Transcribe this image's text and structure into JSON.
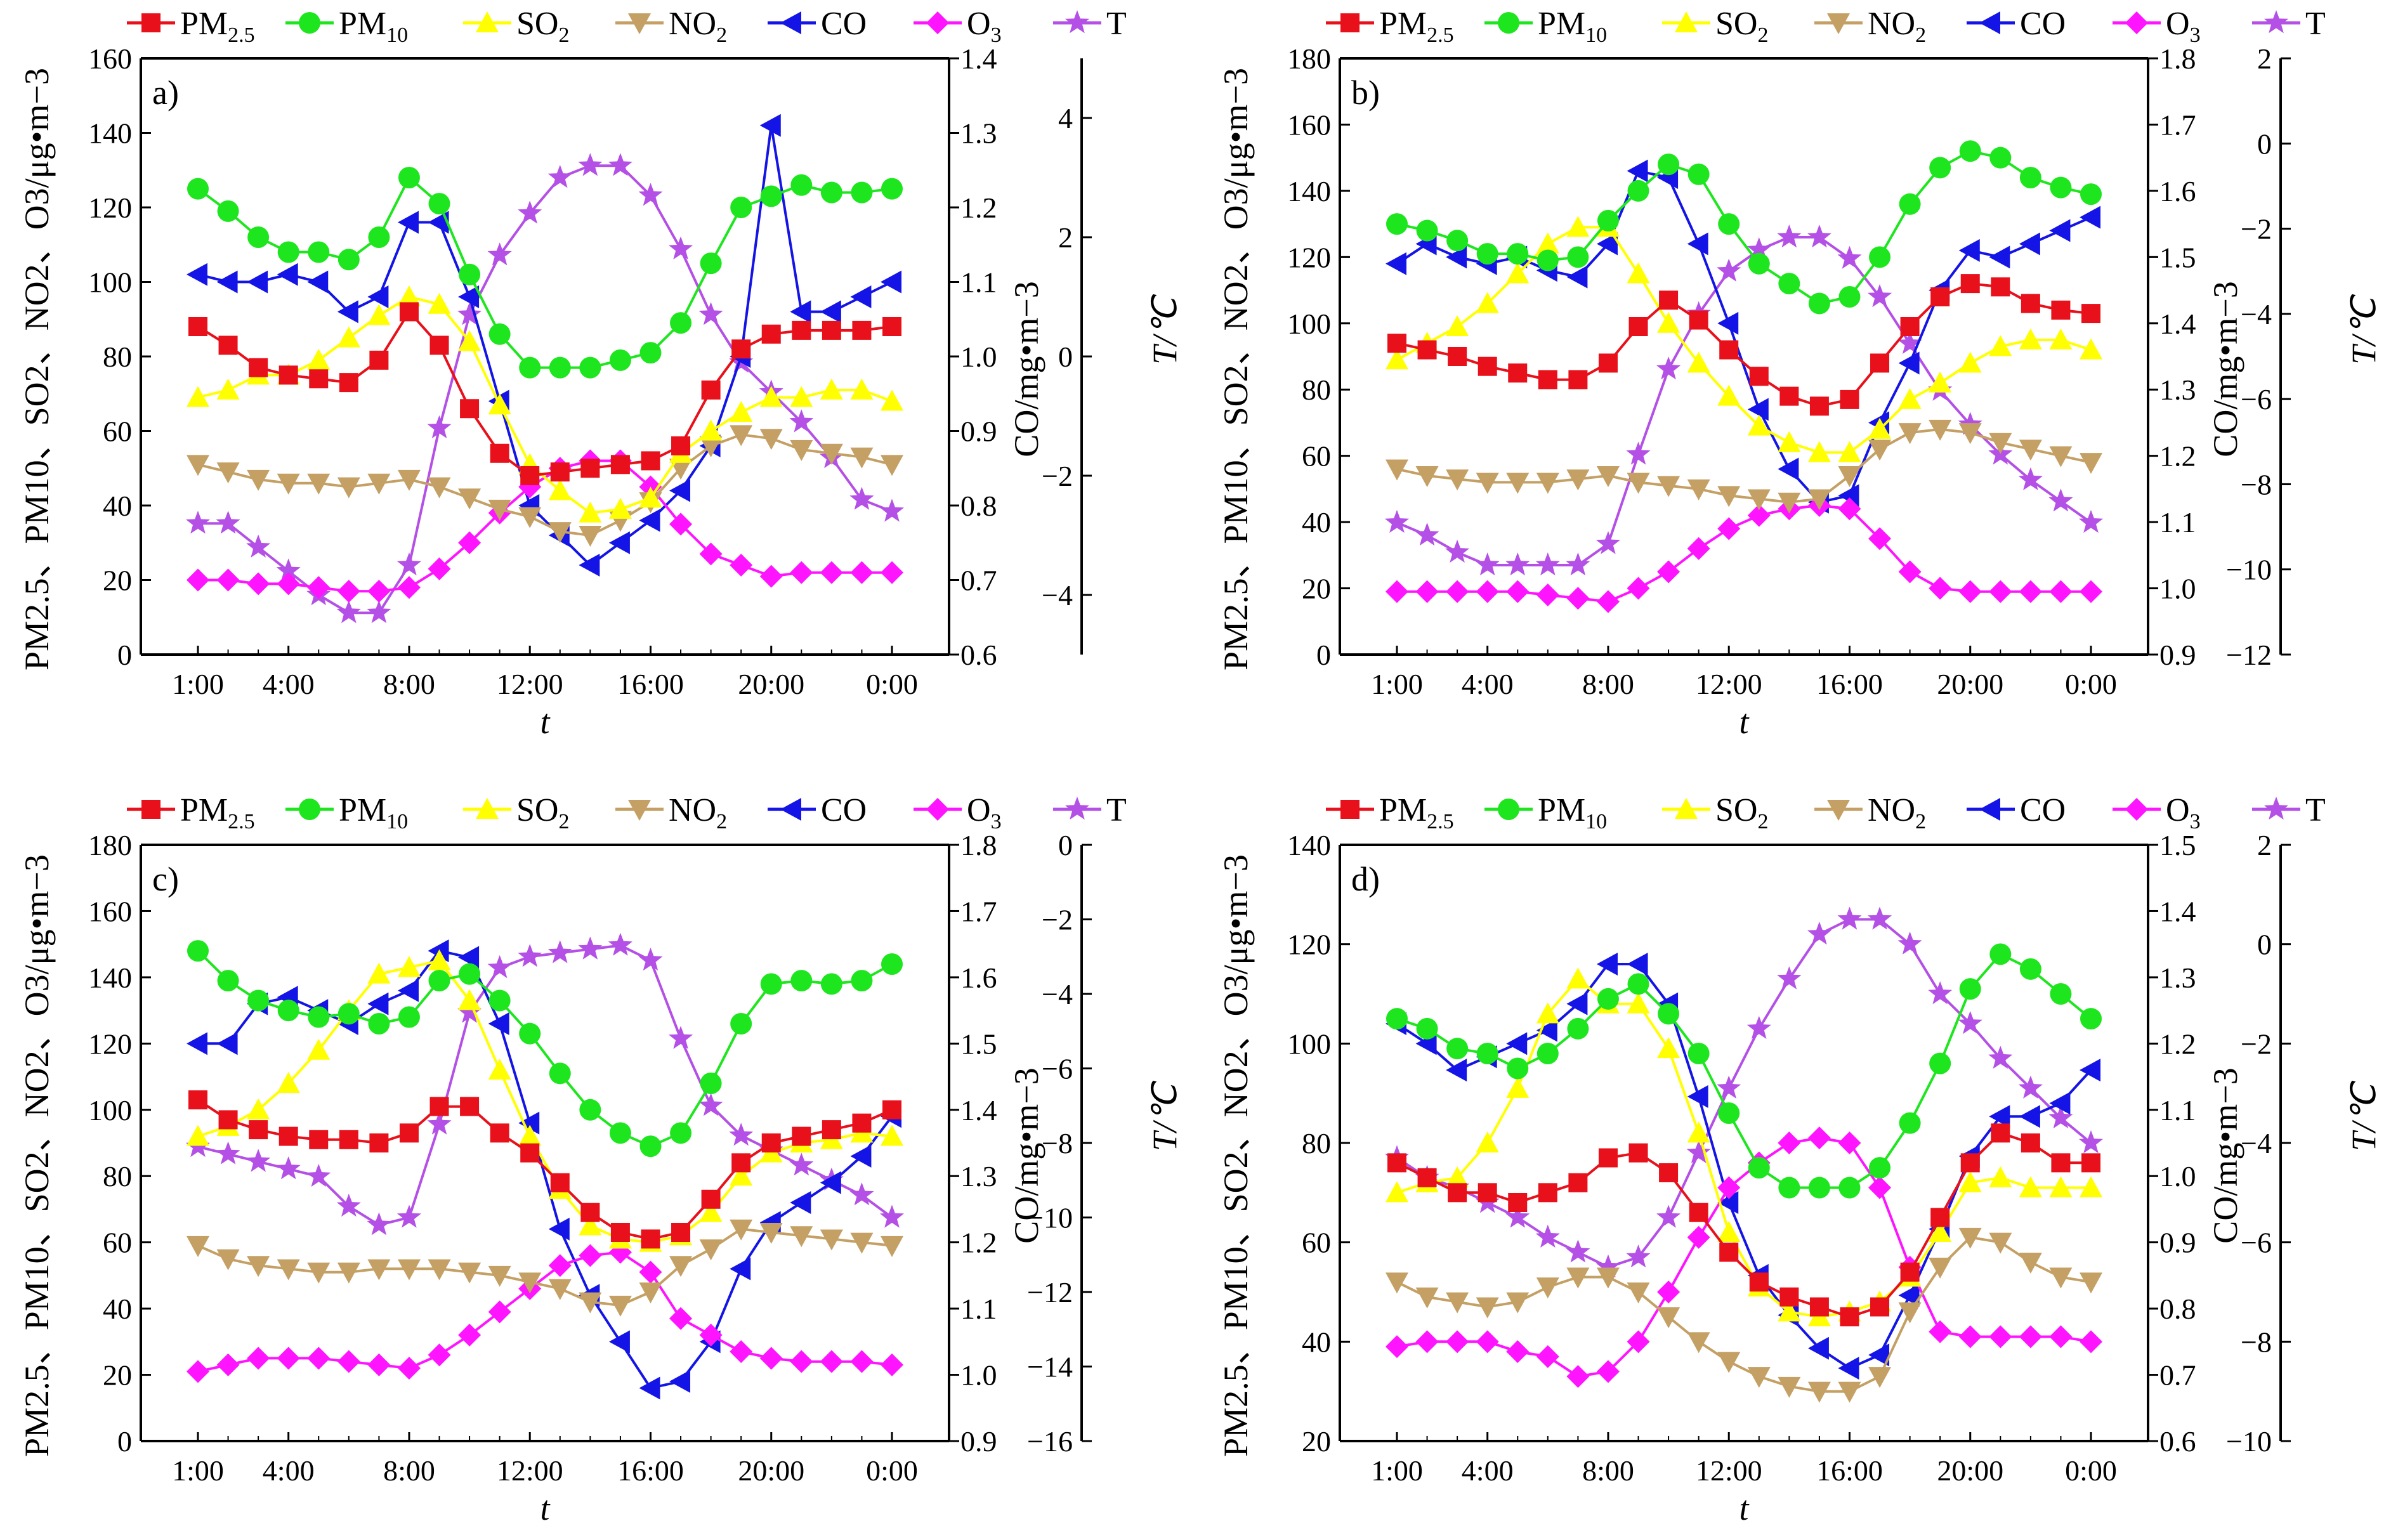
{
  "legend": [
    {
      "key": "pm25",
      "label": "PM",
      "sub": "2.5",
      "color": "#e8101a",
      "marker": "square"
    },
    {
      "key": "pm10",
      "label": "PM",
      "sub": "10",
      "color": "#1ee61e",
      "marker": "circle"
    },
    {
      "key": "so2",
      "label": "SO",
      "sub": "2",
      "color": "#ffff00",
      "marker": "triangle-up"
    },
    {
      "key": "no2",
      "label": "NO",
      "sub": "2",
      "color": "#c4a064",
      "marker": "triangle-down"
    },
    {
      "key": "co",
      "label": "CO",
      "sub": "",
      "color": "#1414e6",
      "marker": "triangle-left"
    },
    {
      "key": "o3",
      "label": "O",
      "sub": "3",
      "color": "#ff14ff",
      "marker": "diamond"
    },
    {
      "key": "t",
      "label": "T",
      "sub": "",
      "color": "#b450e6",
      "marker": "star"
    }
  ],
  "axis_text": {
    "xlabel": "t",
    "xticks": [
      "1:00",
      "4:00",
      "8:00",
      "12:00",
      "16:00",
      "20:00",
      "0:00"
    ],
    "ylabel_left": "PM2.5、PM10、SO2、NO2、O3/μg•m−3",
    "ylabel_co": "CO/mg•m−3",
    "ylabel_t": "T/℃"
  },
  "chart_data": [
    {
      "panel": "a)",
      "type": "line",
      "x": [
        1,
        2,
        3,
        4,
        5,
        6,
        7,
        8,
        9,
        10,
        11,
        12,
        13,
        14,
        15,
        16,
        17,
        18,
        19,
        20,
        21,
        22,
        23,
        24
      ],
      "left_ylim": [
        0,
        160
      ],
      "left_ticks": [
        0,
        20,
        40,
        60,
        80,
        100,
        120,
        140,
        160
      ],
      "co_ylim": [
        0.6,
        1.4
      ],
      "co_ticks": [
        "0.6",
        "0.7",
        "0.8",
        "0.9",
        "1.0",
        "1.1",
        "1.2",
        "1.3",
        "1.4"
      ],
      "t_ylim": [
        -5,
        5
      ],
      "t_ticks": [
        -4,
        -2,
        0,
        2,
        4
      ],
      "series": {
        "pm25": [
          88,
          83,
          77,
          75,
          74,
          73,
          79,
          92,
          83,
          66,
          54,
          48,
          49,
          50,
          51,
          52,
          56,
          71,
          82,
          86,
          87,
          87,
          87,
          88
        ],
        "pm10": [
          125,
          119,
          112,
          108,
          108,
          106,
          112,
          128,
          121,
          102,
          86,
          77,
          77,
          77,
          79,
          81,
          89,
          105,
          120,
          123,
          126,
          124,
          124,
          125
        ],
        "so2": [
          69,
          71,
          75,
          75,
          79,
          85,
          91,
          96,
          94,
          84,
          67,
          51,
          44,
          38,
          39,
          42,
          54,
          60,
          65,
          69,
          69,
          71,
          71,
          68
        ],
        "no2": [
          51,
          49,
          47,
          46,
          46,
          45,
          46,
          47,
          45,
          42,
          39,
          37,
          33,
          32,
          36,
          41,
          50,
          56,
          59,
          58,
          55,
          54,
          53,
          51
        ],
        "o3": [
          20,
          20,
          19,
          19,
          18,
          17,
          17,
          18,
          23,
          30,
          38,
          45,
          50,
          52,
          52,
          45,
          35,
          27,
          24,
          21,
          22,
          22,
          22,
          22
        ],
        "co": [
          1.11,
          1.1,
          1.1,
          1.11,
          1.1,
          1.06,
          1.08,
          1.18,
          1.18,
          1.08,
          0.94,
          0.8,
          0.76,
          0.72,
          0.75,
          0.78,
          0.82,
          0.88,
          1.0,
          1.31,
          1.06,
          1.06,
          1.08,
          1.1
        ],
        "t": [
          -2.8,
          -2.8,
          -3.2,
          -3.6,
          -4.0,
          -4.3,
          -4.3,
          -3.5,
          -1.2,
          0.7,
          1.7,
          2.4,
          3.0,
          3.2,
          3.2,
          2.7,
          1.8,
          0.7,
          -0.1,
          -0.6,
          -1.1,
          -1.7,
          -2.4,
          -2.6
        ]
      }
    },
    {
      "panel": "b)",
      "type": "line",
      "x": [
        1,
        2,
        3,
        4,
        5,
        6,
        7,
        8,
        9,
        10,
        11,
        12,
        13,
        14,
        15,
        16,
        17,
        18,
        19,
        20,
        21,
        22,
        23,
        24
      ],
      "left_ylim": [
        0,
        180
      ],
      "left_ticks": [
        0,
        20,
        40,
        60,
        80,
        100,
        120,
        140,
        160,
        180
      ],
      "co_ylim": [
        0.9,
        1.8
      ],
      "co_ticks": [
        "0.9",
        "1.0",
        "1.1",
        "1.2",
        "1.3",
        "1.4",
        "1.5",
        "1.6",
        "1.7",
        "1.8"
      ],
      "t_ylim": [
        -12,
        2
      ],
      "t_ticks": [
        -12,
        -10,
        -8,
        -6,
        -4,
        -2,
        0,
        2
      ],
      "series": {
        "pm25": [
          94,
          92,
          90,
          87,
          85,
          83,
          83,
          88,
          99,
          107,
          101,
          92,
          84,
          78,
          75,
          77,
          88,
          99,
          108,
          112,
          111,
          106,
          104,
          103
        ],
        "pm10": [
          130,
          128,
          125,
          121,
          121,
          119,
          120,
          131,
          140,
          148,
          145,
          130,
          118,
          112,
          106,
          108,
          120,
          136,
          147,
          152,
          150,
          144,
          141,
          139
        ],
        "so2": [
          89,
          94,
          99,
          106,
          115,
          124,
          129,
          129,
          115,
          100,
          88,
          78,
          69,
          64,
          61,
          61,
          68,
          77,
          82,
          88,
          93,
          95,
          95,
          92
        ],
        "no2": [
          56,
          54,
          53,
          52,
          52,
          52,
          53,
          54,
          52,
          51,
          50,
          48,
          47,
          46,
          47,
          54,
          62,
          67,
          68,
          67,
          64,
          62,
          60,
          58
        ],
        "o3": [
          19,
          19,
          19,
          19,
          19,
          18,
          17,
          16,
          20,
          25,
          32,
          38,
          42,
          44,
          45,
          44,
          35,
          25,
          20,
          19,
          19,
          19,
          19,
          19
        ],
        "co": [
          1.49,
          1.52,
          1.5,
          1.49,
          1.5,
          1.48,
          1.47,
          1.52,
          1.63,
          1.62,
          1.52,
          1.4,
          1.27,
          1.18,
          1.13,
          1.14,
          1.25,
          1.34,
          1.45,
          1.51,
          1.5,
          1.52,
          1.54,
          1.56
        ],
        "t": [
          -8.9,
          -9.2,
          -9.6,
          -9.9,
          -9.9,
          -9.9,
          -9.9,
          -9.4,
          -7.3,
          -5.3,
          -4.0,
          -3.0,
          -2.5,
          -2.2,
          -2.2,
          -2.7,
          -3.6,
          -4.7,
          -5.8,
          -6.6,
          -7.3,
          -7.9,
          -8.4,
          -8.9
        ]
      }
    },
    {
      "panel": "c)",
      "type": "line",
      "x": [
        1,
        2,
        3,
        4,
        5,
        6,
        7,
        8,
        9,
        10,
        11,
        12,
        13,
        14,
        15,
        16,
        17,
        18,
        19,
        20,
        21,
        22,
        23,
        24
      ],
      "left_ylim": [
        0,
        180
      ],
      "left_ticks": [
        0,
        20,
        40,
        60,
        80,
        100,
        120,
        140,
        160,
        180
      ],
      "co_ylim": [
        0.9,
        1.8
      ],
      "co_ticks": [
        "0.9",
        "1.0",
        "1.1",
        "1.2",
        "1.3",
        "1.4",
        "1.5",
        "1.6",
        "1.7",
        "1.8"
      ],
      "t_ylim": [
        -16,
        0
      ],
      "t_ticks": [
        -16,
        -14,
        -12,
        -10,
        -8,
        -6,
        -4,
        -2,
        0
      ],
      "series": {
        "pm25": [
          103,
          97,
          94,
          92,
          91,
          91,
          90,
          93,
          101,
          101,
          93,
          87,
          78,
          69,
          63,
          61,
          63,
          73,
          84,
          90,
          92,
          94,
          96,
          100
        ],
        "pm10": [
          148,
          139,
          133,
          130,
          128,
          129,
          126,
          128,
          139,
          141,
          133,
          123,
          111,
          100,
          93,
          89,
          93,
          108,
          126,
          138,
          139,
          138,
          139,
          144
        ],
        "so2": [
          92,
          95,
          100,
          108,
          118,
          130,
          141,
          143,
          145,
          133,
          112,
          92,
          76,
          65,
          61,
          60,
          62,
          69,
          80,
          87,
          90,
          91,
          93,
          92
        ],
        "no2": [
          59,
          55,
          53,
          52,
          51,
          51,
          52,
          52,
          52,
          51,
          50,
          48,
          46,
          42,
          41,
          45,
          53,
          58,
          64,
          63,
          62,
          61,
          60,
          59
        ],
        "o3": [
          21,
          23,
          25,
          25,
          25,
          24,
          23,
          22,
          26,
          32,
          39,
          46,
          53,
          56,
          57,
          51,
          37,
          32,
          27,
          25,
          24,
          24,
          24,
          23
        ],
        "co": [
          1.5,
          1.5,
          1.56,
          1.57,
          1.55,
          1.53,
          1.56,
          1.58,
          1.64,
          1.63,
          1.53,
          1.38,
          1.22,
          1.12,
          1.05,
          0.98,
          0.99,
          1.05,
          1.16,
          1.23,
          1.26,
          1.29,
          1.33,
          1.39
        ],
        "t": [
          -8.1,
          -8.3,
          -8.5,
          -8.7,
          -8.9,
          -9.7,
          -10.2,
          -10.0,
          -7.5,
          -4.5,
          -3.3,
          -3.0,
          -2.9,
          -2.8,
          -2.7,
          -3.1,
          -5.2,
          -7.0,
          -7.8,
          -8.2,
          -8.6,
          -9.0,
          -9.4,
          -10.0
        ]
      }
    },
    {
      "panel": "d)",
      "type": "line",
      "x": [
        1,
        2,
        3,
        4,
        5,
        6,
        7,
        8,
        9,
        10,
        11,
        12,
        13,
        14,
        15,
        16,
        17,
        18,
        19,
        20,
        21,
        22,
        23,
        24
      ],
      "left_ylim": [
        20,
        140
      ],
      "left_ticks": [
        20,
        40,
        60,
        80,
        100,
        120,
        140
      ],
      "co_ylim": [
        0.6,
        1.5
      ],
      "co_ticks": [
        "0.6",
        "0.7",
        "0.8",
        "0.9",
        "1.0",
        "1.1",
        "1.2",
        "1.3",
        "1.4",
        "1.5"
      ],
      "t_ylim": [
        -10,
        2
      ],
      "t_ticks": [
        -10,
        -8,
        -6,
        -4,
        -2,
        0,
        2
      ],
      "series": {
        "pm25": [
          76,
          73,
          70,
          70,
          68,
          70,
          72,
          77,
          78,
          74,
          66,
          58,
          52,
          49,
          47,
          45,
          47,
          54,
          65,
          76,
          82,
          80,
          76,
          76
        ],
        "pm10": [
          105,
          103,
          99,
          98,
          95,
          98,
          103,
          109,
          112,
          106,
          98,
          86,
          75,
          71,
          71,
          71,
          75,
          84,
          96,
          111,
          118,
          115,
          110,
          105
        ],
        "so2": [
          70,
          72,
          73,
          80,
          91,
          106,
          113,
          108,
          108,
          99,
          82,
          62,
          51,
          46,
          45,
          46,
          48,
          53,
          62,
          72,
          73,
          71,
          71,
          71
        ],
        "no2": [
          52,
          49,
          48,
          47,
          48,
          51,
          53,
          53,
          50,
          45,
          40,
          36,
          33,
          31,
          30,
          30,
          33,
          46,
          55,
          61,
          60,
          56,
          53,
          52
        ],
        "o3": [
          39,
          40,
          40,
          40,
          38,
          37,
          33,
          34,
          40,
          50,
          61,
          71,
          76,
          80,
          81,
          80,
          71,
          55,
          42,
          41,
          41,
          41,
          41,
          40
        ],
        "co": [
          1.23,
          1.2,
          1.16,
          1.18,
          1.2,
          1.22,
          1.26,
          1.32,
          1.32,
          1.26,
          1.12,
          0.96,
          0.85,
          0.79,
          0.74,
          0.71,
          0.73,
          0.82,
          0.92,
          1.03,
          1.09,
          1.09,
          1.11,
          1.16
        ],
        "t": [
          -4.3,
          -4.7,
          -4.9,
          -5.2,
          -5.5,
          -5.9,
          -6.2,
          -6.5,
          -6.3,
          -5.5,
          -4.2,
          -2.9,
          -1.7,
          -0.7,
          0.2,
          0.5,
          0.5,
          0.0,
          -1.0,
          -1.6,
          -2.3,
          -2.9,
          -3.5,
          -4.0
        ]
      }
    }
  ]
}
